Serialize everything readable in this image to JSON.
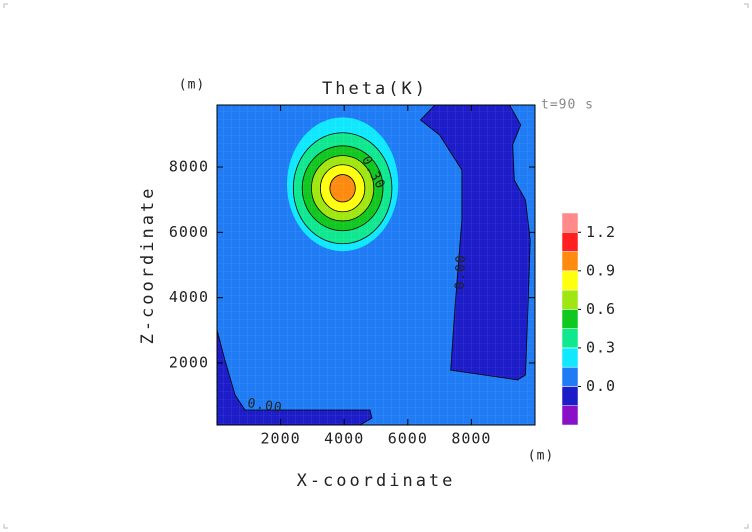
{
  "chart_data": {
    "type": "contour",
    "title": "Theta(K)",
    "annotation": "t=90 s",
    "xlabel": "X-coordinate",
    "ylabel": "Z-coordinate",
    "xunit": "(m)",
    "yunit": "(m)",
    "xlim": [
      0,
      10000
    ],
    "ylim": [
      100,
      9900
    ],
    "xticks": [
      2000,
      4000,
      6000,
      8000
    ],
    "yticks": [
      2000,
      4000,
      6000,
      8000
    ],
    "background_level": 0,
    "colorbar": {
      "levels": [
        -0.3,
        -0.15,
        0,
        0.15,
        0.3,
        0.45,
        0.6,
        0.75,
        0.9,
        1.05,
        1.2,
        1.35
      ],
      "colors": [
        "#8a10c8",
        "#1c1cc8",
        "#1f7cf5",
        "#10e8ff",
        "#10e890",
        "#10c820",
        "#a0e610",
        "#ffff10",
        "#ff8a10",
        "#ff2020",
        "#ff8a8a"
      ],
      "ticks": [
        {
          "value": 0,
          "label": "0.0"
        },
        0.3,
        0.6,
        0.9,
        1.2
      ]
    },
    "bubble": {
      "x": 3950,
      "y": 7350,
      "rings": [
        {
          "value": 0.15,
          "rx": 1750,
          "ry": 2050
        },
        {
          "value": 0.3,
          "rx": 1550,
          "ry": 1700
        },
        {
          "value": 0.45,
          "rx": 1270,
          "ry": 1300
        },
        {
          "value": 0.6,
          "rx": 980,
          "ry": 1000
        },
        {
          "value": 0.75,
          "rx": 700,
          "ry": 720
        },
        {
          "value": 0.9,
          "rx": 400,
          "ry": 420
        }
      ]
    },
    "regions": [
      {
        "value": -0.15,
        "x": [
          6400,
          6850,
          9200,
          9550,
          9300,
          9350,
          9700,
          9850,
          9800,
          9700,
          9450,
          7350,
          7500,
          7700,
          7700,
          7000
        ],
        "y": [
          9440,
          9900,
          9900,
          9290,
          8680,
          7600,
          6990,
          5770,
          4230,
          1630,
          1480,
          1780,
          3930,
          6380,
          7910,
          8980
        ]
      },
      {
        "value": -0.15,
        "x": [
          0,
          250,
          570,
          880,
          4810,
          4870,
          4500,
          0
        ],
        "y": [
          3010,
          2090,
          1020,
          560,
          560,
          310,
          100,
          100
        ]
      }
    ],
    "contour_labels": [
      "0.30",
      "0.00",
      "0.00"
    ]
  }
}
